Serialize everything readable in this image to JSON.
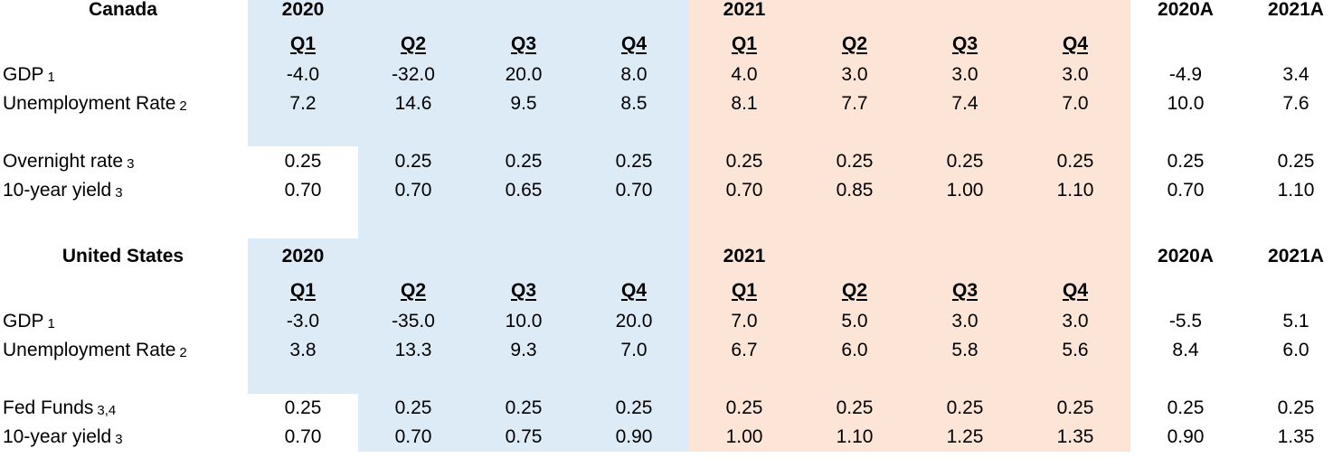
{
  "colors": {
    "shade_2020": "#ddebf7",
    "shade_2021": "#fce4d6"
  },
  "quarters": [
    "Q1",
    "Q2",
    "Q3",
    "Q4"
  ],
  "canada": {
    "title": "Canada",
    "year_2020": "2020",
    "year_2021": "2021",
    "annual_2020": "2020A",
    "annual_2021": "2021A",
    "rows": [
      {
        "label": "GDP",
        "note": "1",
        "values": [
          "-4.0",
          "-32.0",
          "20.0",
          "8.0",
          "4.0",
          "3.0",
          "3.0",
          "3.0",
          "-4.9",
          "3.4"
        ]
      },
      {
        "label": "Unemployment Rate",
        "note": "2",
        "values": [
          "7.2",
          "14.6",
          "9.5",
          "8.5",
          "8.1",
          "7.7",
          "7.4",
          "7.0",
          "10.0",
          "7.6"
        ]
      },
      {
        "label": "Overnight rate",
        "note": "3",
        "values": [
          "0.25",
          "0.25",
          "0.25",
          "0.25",
          "0.25",
          "0.25",
          "0.25",
          "0.25",
          "0.25",
          "0.25"
        ]
      },
      {
        "label": "10-year yield",
        "note": "3",
        "values": [
          "0.70",
          "0.70",
          "0.65",
          "0.70",
          "0.70",
          "0.85",
          "1.00",
          "1.10",
          "0.70",
          "1.10"
        ]
      }
    ]
  },
  "united_states": {
    "title": "United States",
    "year_2020": "2020",
    "year_2021": "2021",
    "annual_2020": "2020A",
    "annual_2021": "2021A",
    "rows": [
      {
        "label": "GDP",
        "note": "1",
        "values": [
          "-3.0",
          "-35.0",
          "10.0",
          "20.0",
          "7.0",
          "5.0",
          "3.0",
          "3.0",
          "-5.5",
          "5.1"
        ]
      },
      {
        "label": "Unemployment Rate",
        "note": "2",
        "values": [
          "3.8",
          "13.3",
          "9.3",
          "7.0",
          "6.7",
          "6.0",
          "5.8",
          "5.6",
          "8.4",
          "6.0"
        ]
      },
      {
        "label": "Fed Funds",
        "note": "3,4",
        "values": [
          "0.25",
          "0.25",
          "0.25",
          "0.25",
          "0.25",
          "0.25",
          "0.25",
          "0.25",
          "0.25",
          "0.25"
        ]
      },
      {
        "label": "10-year yield",
        "note": "3",
        "values": [
          "0.70",
          "0.70",
          "0.75",
          "0.90",
          "1.00",
          "1.10",
          "1.25",
          "1.35",
          "0.90",
          "1.35"
        ]
      }
    ]
  }
}
